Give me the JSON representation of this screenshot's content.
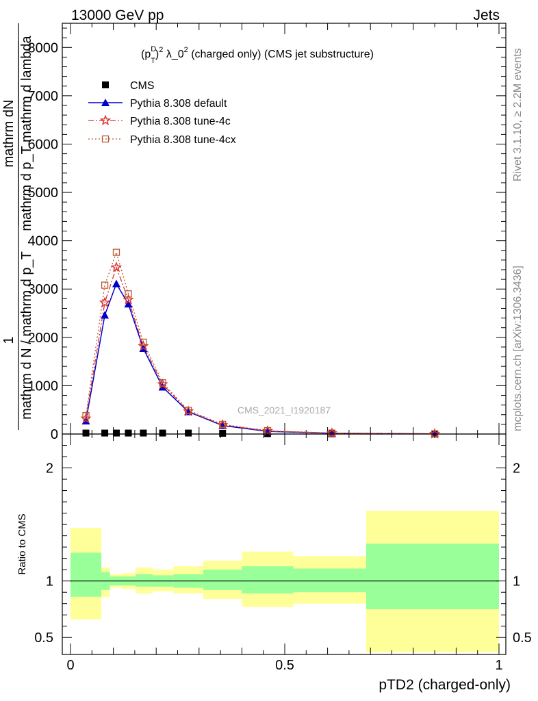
{
  "header": {
    "left": "13000 GeV pp",
    "right": "Jets"
  },
  "side_labels": {
    "rivet": "Rivet 3.1.10, ≥ 2.2M events",
    "mcplots": "mcplots.cern.ch [arXiv:1306.3436]"
  },
  "chart_data": [
    {
      "type": "line",
      "title": "(p_T^D)^2 λ_0^2 (charged only) (CMS jet substructure)",
      "title_parts": {
        "a": "(p",
        "sup_d": "D",
        "sub_t": "T",
        "b": ")",
        "sup2": "2",
        "c": " λ_0",
        "sup2b": "2",
        "d": " (charged only) (CMS jet substructure)"
      },
      "ylabel_top": "mathrm dN",
      "ylabel_denominator": "mathrm d p_T mathrm d lambda",
      "ylabel_one": "1",
      "ylabel_bottom": "mathrm d N / mathrm d p_T",
      "ylabel_sub": "T",
      "watermark": "CMS_2021_I1920187",
      "xlim": [
        0,
        1
      ],
      "ylim": [
        0,
        8500
      ],
      "yticks": [
        "0",
        "1000",
        "2000",
        "3000",
        "4000",
        "5000",
        "6000",
        "7000",
        "8000"
      ],
      "ytick_values": [
        0,
        1000,
        2000,
        3000,
        4000,
        5000,
        6000,
        7000,
        8000
      ],
      "x": [
        0.036,
        0.08,
        0.107,
        0.135,
        0.17,
        0.215,
        0.275,
        0.355,
        0.46,
        0.61,
        0.85
      ],
      "series": [
        {
          "name": "CMS",
          "marker": "square",
          "color": "#000000",
          "values": [
            20,
            20,
            20,
            20,
            20,
            20,
            20,
            15,
            8,
            5,
            2
          ]
        },
        {
          "name": "Pythia 8.308 default",
          "marker": "triangle",
          "color": "#0000cc",
          "values": [
            270,
            2460,
            3110,
            2690,
            1770,
            970,
            460,
            175,
            55,
            15,
            3
          ]
        },
        {
          "name": "Pythia 8.308 tune-4c",
          "marker": "star",
          "color": "#dd3333",
          "values": [
            320,
            2720,
            3450,
            2780,
            1820,
            1030,
            470,
            190,
            62,
            18,
            4
          ]
        },
        {
          "name": "Pythia 8.308 tune-4cx",
          "marker": "open-square",
          "color": "#b8582e",
          "values": [
            380,
            3080,
            3760,
            2900,
            1900,
            1060,
            490,
            200,
            70,
            20,
            5
          ]
        }
      ]
    },
    {
      "type": "area",
      "ylabel": "Ratio to CMS",
      "xlabel": "pTD2 (charged-only)",
      "xlim": [
        0,
        1
      ],
      "ylim": [
        0.35,
        2.3
      ],
      "xticks": [
        "0",
        "0.5",
        "1"
      ],
      "xtick_values": [
        0,
        0.5,
        1
      ],
      "yticks": [
        "0.5",
        "1",
        "2"
      ],
      "ytick_values": [
        0.5,
        1,
        2
      ],
      "bins": [
        {
          "lo": 0.0,
          "hi": 0.072,
          "y_lo": 0.66,
          "y_hi": 1.47,
          "g_lo": 0.86,
          "g_hi": 1.25
        },
        {
          "lo": 0.072,
          "hi": 0.092,
          "y_lo": 0.86,
          "y_hi": 1.12,
          "g_lo": 0.92,
          "g_hi": 1.08
        },
        {
          "lo": 0.092,
          "hi": 0.12,
          "y_lo": 0.94,
          "y_hi": 1.06,
          "g_lo": 0.96,
          "g_hi": 1.04
        },
        {
          "lo": 0.12,
          "hi": 0.152,
          "y_lo": 0.93,
          "y_hi": 1.07,
          "g_lo": 0.96,
          "g_hi": 1.04
        },
        {
          "lo": 0.152,
          "hi": 0.192,
          "y_lo": 0.89,
          "y_hi": 1.12,
          "g_lo": 0.95,
          "g_hi": 1.06
        },
        {
          "lo": 0.192,
          "hi": 0.24,
          "y_lo": 0.91,
          "y_hi": 1.1,
          "g_lo": 0.95,
          "g_hi": 1.05
        },
        {
          "lo": 0.24,
          "hi": 0.31,
          "y_lo": 0.89,
          "y_hi": 1.13,
          "g_lo": 0.94,
          "g_hi": 1.06
        },
        {
          "lo": 0.31,
          "hi": 0.4,
          "y_lo": 0.84,
          "y_hi": 1.18,
          "g_lo": 0.92,
          "g_hi": 1.1
        },
        {
          "lo": 0.4,
          "hi": 0.52,
          "y_lo": 0.77,
          "y_hi": 1.26,
          "g_lo": 0.89,
          "g_hi": 1.13
        },
        {
          "lo": 0.52,
          "hi": 0.69,
          "y_lo": 0.8,
          "y_hi": 1.22,
          "g_lo": 0.9,
          "g_hi": 1.11
        },
        {
          "lo": 0.69,
          "hi": 1.0,
          "y_lo": 0.37,
          "y_hi": 1.62,
          "g_lo": 0.75,
          "g_hi": 1.33
        }
      ]
    }
  ]
}
